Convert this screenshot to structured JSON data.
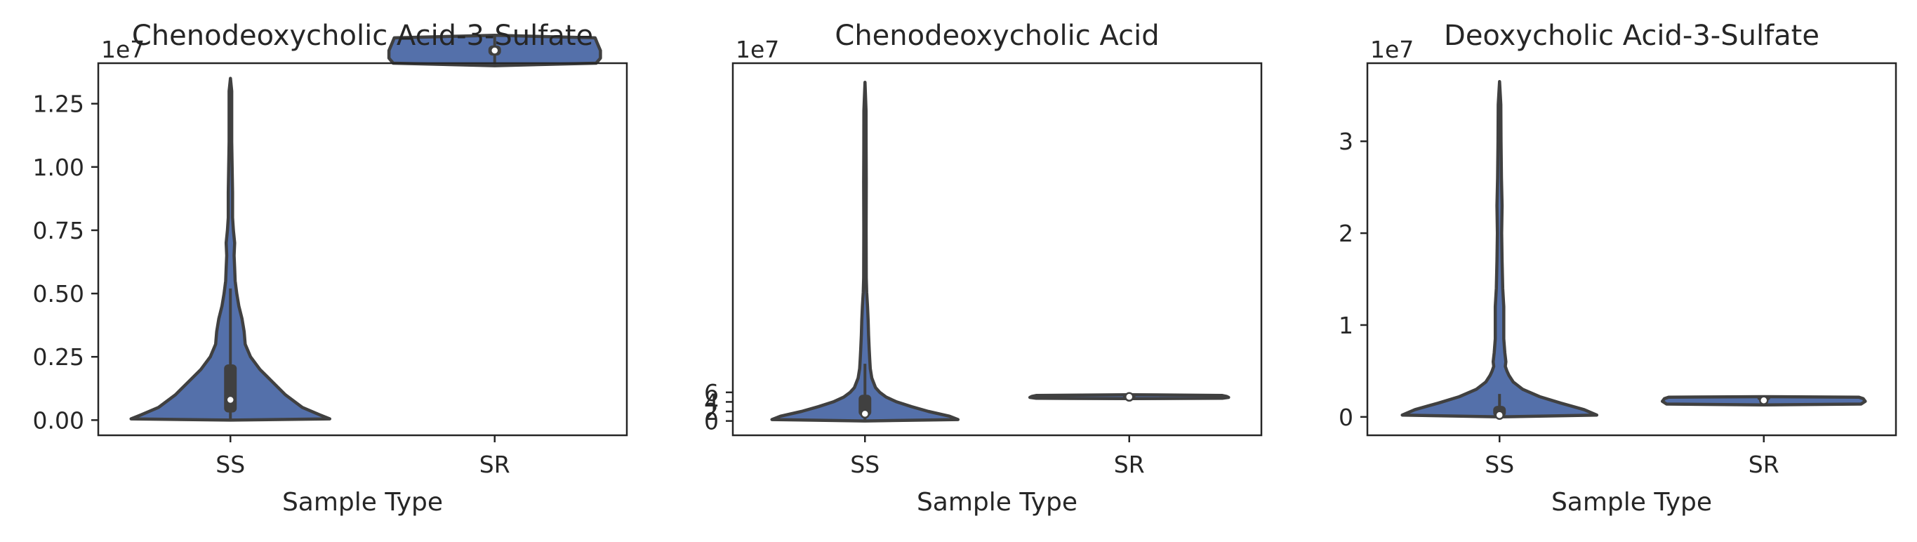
{
  "chart_data": [
    {
      "type": "violin",
      "title": "Chenodeoxycholic Acid-3-Sulfate",
      "xlabel": "Sample Type",
      "ylabel": "",
      "categories": [
        "SS",
        "SR"
      ],
      "offset_text": "1e7",
      "ylim": [
        -0.06,
        1.41
      ],
      "yticks": [
        0.0,
        0.25,
        0.5,
        0.75,
        1.0,
        1.25
      ],
      "ytick_labels": [
        "0.00",
        "0.25",
        "0.50",
        "0.75",
        "1.00",
        "1.25"
      ],
      "fill_color": "#5470aa",
      "edge_color": "#404040",
      "violins": [
        {
          "category": "SS",
          "min": 0.0,
          "max": 1.35,
          "q1": 0.03,
          "median": 0.08,
          "q3": 0.22,
          "whisker_low": 0.0,
          "whisker_high": 0.52,
          "density": [
            [
              0.0,
              0.0
            ],
            [
              0.005,
              0.94
            ],
            [
              0.02,
              0.85
            ],
            [
              0.05,
              0.68
            ],
            [
              0.1,
              0.52
            ],
            [
              0.15,
              0.4
            ],
            [
              0.2,
              0.28
            ],
            [
              0.25,
              0.19
            ],
            [
              0.3,
              0.14
            ],
            [
              0.35,
              0.13
            ],
            [
              0.4,
              0.11
            ],
            [
              0.45,
              0.08
            ],
            [
              0.5,
              0.06
            ],
            [
              0.55,
              0.045
            ],
            [
              0.6,
              0.04
            ],
            [
              0.65,
              0.035
            ],
            [
              0.7,
              0.04
            ],
            [
              0.75,
              0.028
            ],
            [
              0.8,
              0.02
            ],
            [
              0.9,
              0.02
            ],
            [
              1.0,
              0.016
            ],
            [
              1.1,
              0.012
            ],
            [
              1.2,
              0.012
            ],
            [
              1.3,
              0.012
            ],
            [
              1.35,
              0.0
            ]
          ]
        },
        {
          "category": "SR",
          "min": 1.4,
          "max": 1.52,
          "q1": 1.44,
          "median": 1.46,
          "q3": 1.48,
          "whisker_low": 1.4,
          "whisker_high": 1.52,
          "density": [
            [
              1.4,
              0.0
            ],
            [
              1.41,
              0.96
            ],
            [
              1.43,
              1.0
            ],
            [
              1.46,
              1.0
            ],
            [
              1.49,
              0.97
            ],
            [
              1.51,
              0.95
            ],
            [
              1.52,
              0.0
            ]
          ],
          "value_scale": 0.1
        }
      ]
    },
    {
      "type": "violin",
      "title": "Chenodeoxycholic Acid",
      "xlabel": "Sample Type",
      "ylabel": "",
      "categories": [
        "SS",
        "SR"
      ],
      "offset_text": "1e7",
      "ylim": [
        -3.0,
        75.0
      ],
      "yticks": [
        0,
        2,
        4,
        6
      ],
      "ytick_labels": [
        "0",
        "2",
        "4",
        "6"
      ],
      "fill_color": "#5470aa",
      "edge_color": "#404040",
      "violins": [
        {
          "category": "SS",
          "min": 0.0,
          "max": 71.0,
          "q1": 1.0,
          "median": 1.5,
          "q3": 5.5,
          "whisker_low": 0.0,
          "whisker_high": 12.0,
          "density": [
            [
              0.0,
              0.0
            ],
            [
              0.3,
              0.88
            ],
            [
              1.0,
              0.8
            ],
            [
              2.0,
              0.6
            ],
            [
              3.0,
              0.44
            ],
            [
              4.0,
              0.3
            ],
            [
              5.0,
              0.2
            ],
            [
              6.0,
              0.14
            ],
            [
              7.0,
              0.1
            ],
            [
              9.0,
              0.065
            ],
            [
              11.0,
              0.05
            ],
            [
              13.0,
              0.045
            ],
            [
              15.0,
              0.04
            ],
            [
              18.0,
              0.034
            ],
            [
              21.0,
              0.03
            ],
            [
              24.0,
              0.024
            ],
            [
              27.0,
              0.016
            ],
            [
              30.0,
              0.012
            ],
            [
              40.0,
              0.011
            ],
            [
              50.0,
              0.012
            ],
            [
              57.0,
              0.011
            ],
            [
              65.0,
              0.01
            ],
            [
              71.0,
              0.0
            ]
          ]
        },
        {
          "category": "SR",
          "min": 4.7,
          "max": 5.5,
          "q1": 4.9,
          "median": 5.05,
          "q3": 5.2,
          "whisker_low": 4.7,
          "whisker_high": 5.5,
          "density": [
            [
              4.7,
              0.0
            ],
            [
              4.75,
              0.88
            ],
            [
              4.95,
              0.94
            ],
            [
              5.15,
              0.92
            ],
            [
              5.35,
              0.88
            ],
            [
              5.5,
              0.0
            ]
          ]
        }
      ]
    },
    {
      "type": "violin",
      "title": "Deoxycholic Acid-3-Sulfate",
      "xlabel": "Sample Type",
      "ylabel": "",
      "categories": [
        "SS",
        "SR"
      ],
      "offset_text": "1e7",
      "ylim": [
        -0.2,
        3.85
      ],
      "yticks": [
        0,
        1,
        2,
        3
      ],
      "ytick_labels": [
        "0",
        "1",
        "2",
        "3"
      ],
      "fill_color": "#5470aa",
      "edge_color": "#404040",
      "violins": [
        {
          "category": "SS",
          "min": 0.0,
          "max": 3.65,
          "q1": 0.0,
          "median": 0.02,
          "q3": 0.12,
          "whisker_low": 0.0,
          "whisker_high": 0.25,
          "density": [
            [
              0.0,
              0.0
            ],
            [
              0.02,
              0.92
            ],
            [
              0.08,
              0.8
            ],
            [
              0.15,
              0.58
            ],
            [
              0.22,
              0.38
            ],
            [
              0.3,
              0.22
            ],
            [
              0.38,
              0.13
            ],
            [
              0.45,
              0.09
            ],
            [
              0.5,
              0.07
            ],
            [
              0.55,
              0.055
            ],
            [
              0.6,
              0.06
            ],
            [
              0.7,
              0.05
            ],
            [
              0.85,
              0.04
            ],
            [
              1.0,
              0.04
            ],
            [
              1.2,
              0.04
            ],
            [
              1.4,
              0.03
            ],
            [
              1.7,
              0.024
            ],
            [
              2.0,
              0.02
            ],
            [
              2.3,
              0.024
            ],
            [
              2.6,
              0.018
            ],
            [
              3.0,
              0.014
            ],
            [
              3.4,
              0.012
            ],
            [
              3.65,
              0.0
            ]
          ]
        },
        {
          "category": "SR",
          "min": 0.13,
          "max": 0.22,
          "q1": 0.16,
          "median": 0.18,
          "q3": 0.2,
          "whisker_low": 0.13,
          "whisker_high": 0.22,
          "density": [
            [
              0.13,
              0.0
            ],
            [
              0.14,
              0.92
            ],
            [
              0.17,
              0.96
            ],
            [
              0.2,
              0.94
            ],
            [
              0.215,
              0.9
            ],
            [
              0.22,
              0.0
            ]
          ]
        }
      ]
    }
  ]
}
